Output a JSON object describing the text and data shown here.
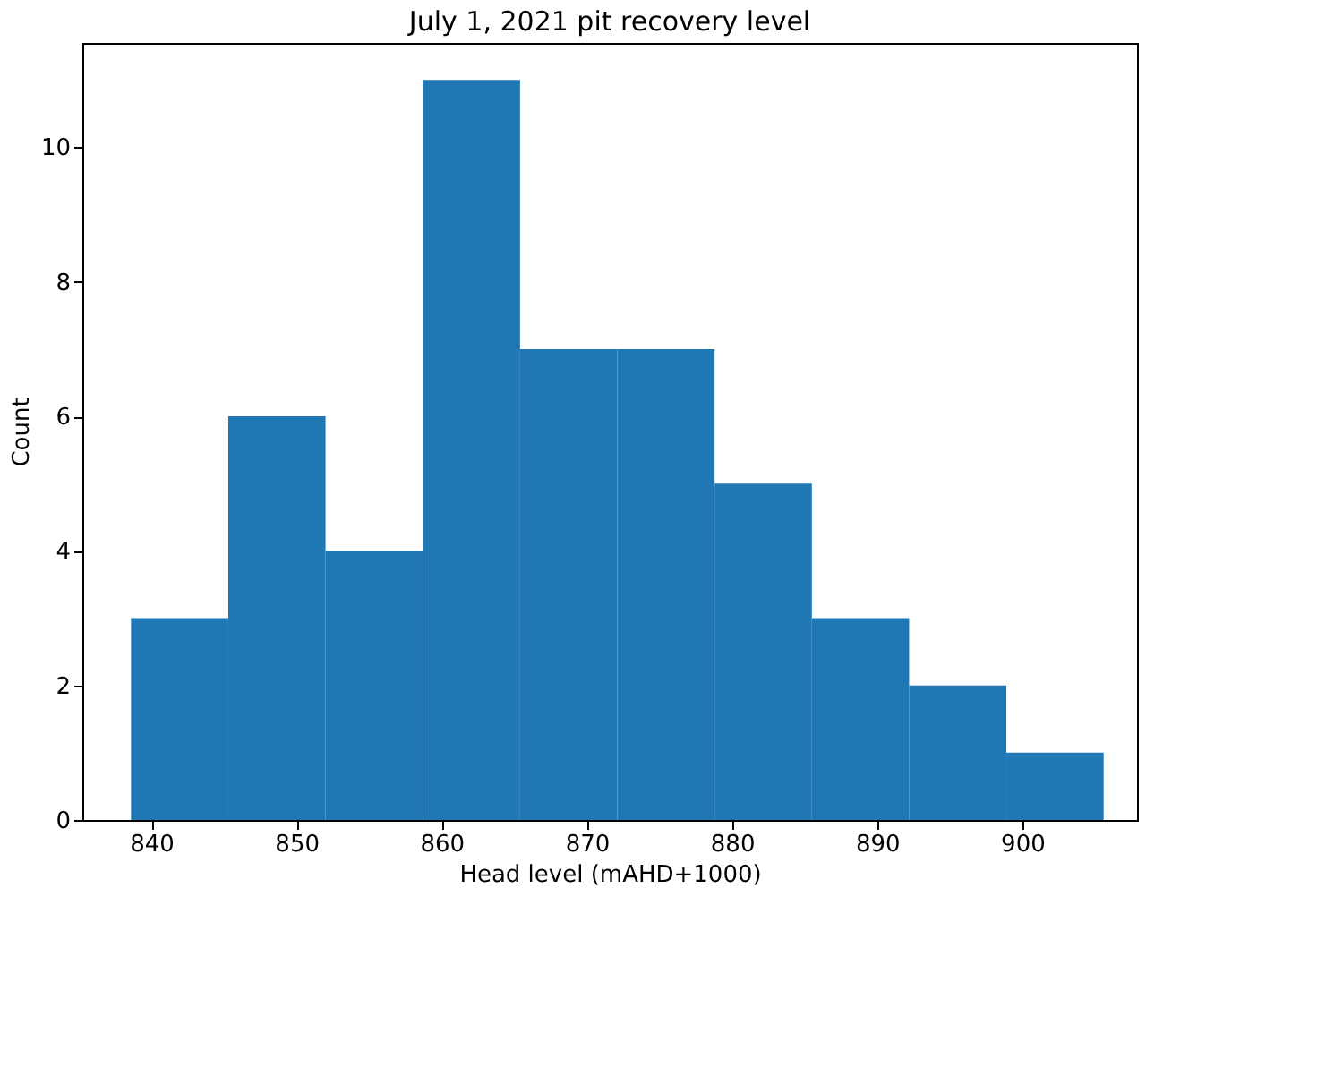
{
  "chart_data": {
    "type": "histogram",
    "title": "July 1, 2021 pit recovery level",
    "xlabel": "Head level (mAHD+1000)",
    "ylabel": "Count",
    "bins": [
      838.6,
      845.3,
      852.0,
      858.7,
      865.4,
      872.1,
      878.8,
      885.5,
      892.2,
      898.9,
      905.6
    ],
    "values": [
      3,
      6,
      4,
      11,
      7,
      7,
      5,
      3,
      2,
      1
    ],
    "color": "#1f77b4",
    "xlim": [
      835.25,
      907.9
    ],
    "xticks": [
      840,
      850,
      860,
      870,
      880,
      890,
      900
    ],
    "ylim": [
      0,
      11.55
    ],
    "yticks": [
      0,
      2,
      4,
      6,
      8,
      10
    ],
    "grid": false
  }
}
